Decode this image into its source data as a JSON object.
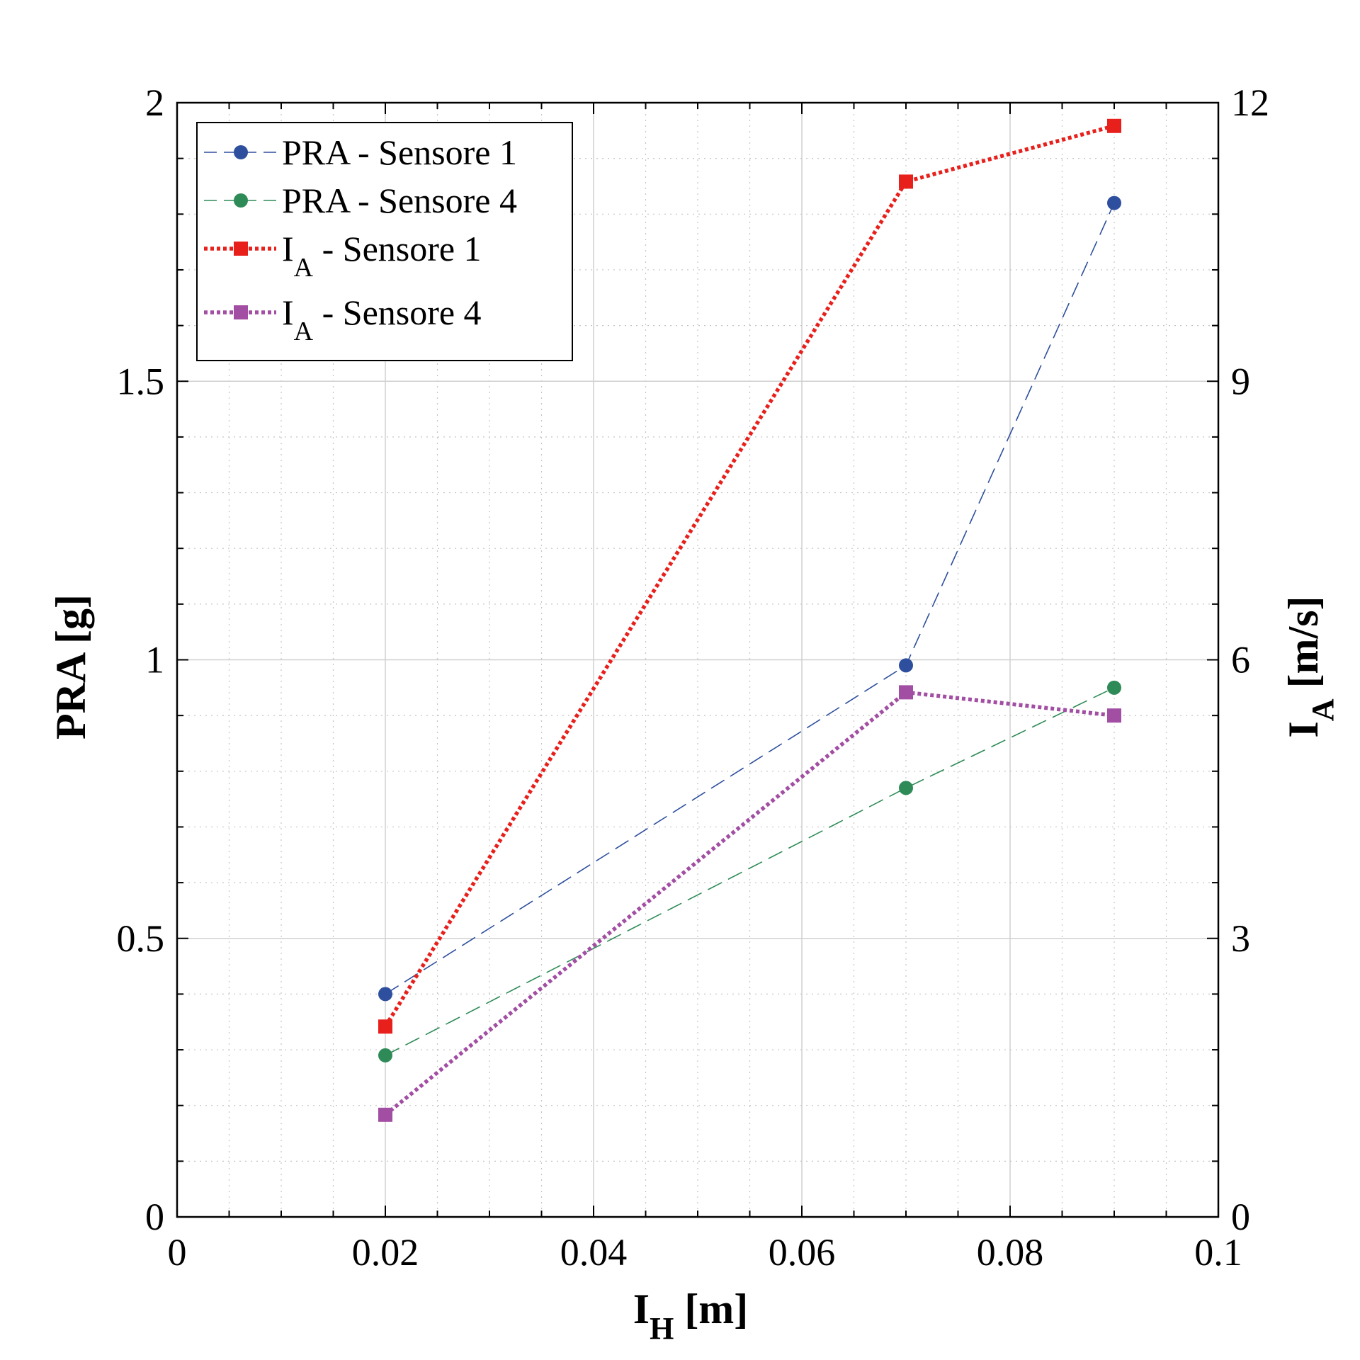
{
  "chart_data": {
    "type": "line",
    "xlabel": {
      "main": "I",
      "sub": "H",
      "unit": " [m]"
    },
    "ylabel_left": "PRA [g]",
    "ylabel_right": {
      "main": "I",
      "sub": "A",
      "unit": " [m/s]"
    },
    "xlim": [
      0,
      0.1
    ],
    "ylim_left": [
      0,
      2
    ],
    "ylim_right": [
      0,
      12
    ],
    "xticks": [
      "0",
      "0.02",
      "0.04",
      "0.06",
      "0.08",
      "0.1"
    ],
    "yticks_left": [
      "0",
      "0.5",
      "1",
      "1.5",
      "2"
    ],
    "yticks_right": [
      "0",
      "3",
      "6",
      "9",
      "12"
    ],
    "grid": true,
    "legend_position": "top-left",
    "series": [
      {
        "name": "PRA - Sensore 1",
        "legend": {
          "main": "PRA - Sensore 1"
        },
        "axis": "left",
        "color": "#2e4f9e",
        "line_style": "dashed",
        "marker": "circle",
        "x": [
          0.02,
          0.07,
          0.09
        ],
        "y": [
          0.4,
          0.99,
          1.82
        ]
      },
      {
        "name": "PRA - Sensore 4",
        "legend": {
          "main": "PRA - Sensore 4"
        },
        "axis": "left",
        "color": "#2e8b57",
        "line_style": "dashed",
        "marker": "circle",
        "x": [
          0.02,
          0.07,
          0.09
        ],
        "y": [
          0.29,
          0.77,
          0.95
        ]
      },
      {
        "name": "I_A - Sensore 1",
        "legend": {
          "main": "I",
          "sub": "A",
          "rest": " - Sensore 1"
        },
        "axis": "right",
        "color": "#e8201c",
        "line_style": "dotted",
        "marker": "square",
        "x": [
          0.02,
          0.07,
          0.09
        ],
        "y": [
          2.05,
          11.15,
          11.75
        ]
      },
      {
        "name": "I_A - Sensore 4",
        "legend": {
          "main": "I",
          "sub": "A",
          "rest": " - Sensore 4"
        },
        "axis": "right",
        "color": "#a24ea3",
        "line_style": "dotted",
        "marker": "square",
        "x": [
          0.02,
          0.07,
          0.09
        ],
        "y": [
          1.1,
          5.65,
          5.4
        ]
      }
    ]
  }
}
